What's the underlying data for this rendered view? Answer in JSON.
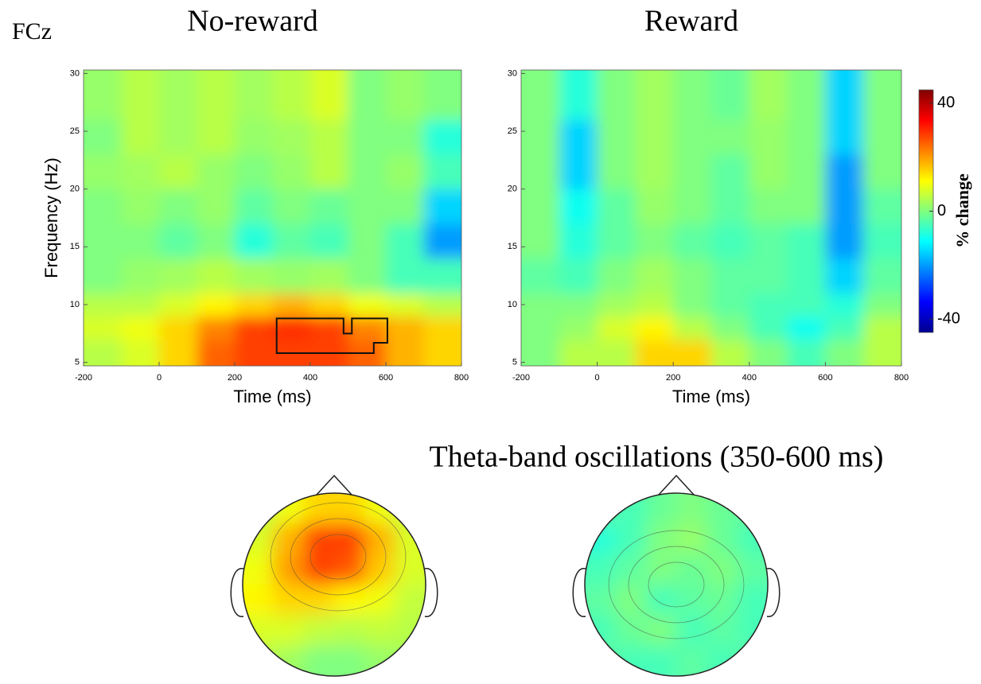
{
  "chart_data": [
    {
      "type": "heatmap",
      "label": "FCz",
      "title": "No-reward",
      "xlabel": "Time (ms)",
      "ylabel": "Frequency (Hz)",
      "xlim": [
        -200,
        800
      ],
      "xticks": [
        -200,
        0,
        200,
        400,
        600,
        800
      ],
      "ylim": [
        4.7,
        30.3
      ],
      "yticks": [
        5,
        10,
        15,
        20,
        25,
        30
      ],
      "x": [
        -200,
        -100,
        0,
        100,
        200,
        300,
        400,
        500,
        600,
        700,
        800
      ],
      "y": [
        4.7,
        7,
        9,
        11,
        14,
        17,
        20,
        23,
        26,
        30.3
      ],
      "values": [
        [
          5,
          8,
          15,
          25,
          28,
          28,
          28,
          25,
          18,
          15
        ],
        [
          8,
          10,
          15,
          22,
          28,
          30,
          28,
          22,
          18,
          15
        ],
        [
          5,
          5,
          8,
          12,
          15,
          18,
          15,
          10,
          8,
          5
        ],
        [
          0,
          2,
          3,
          5,
          3,
          2,
          3,
          0,
          -5,
          -5
        ],
        [
          0,
          0,
          -3,
          0,
          -8,
          -3,
          -5,
          0,
          -5,
          -20
        ],
        [
          0,
          2,
          0,
          2,
          -3,
          0,
          -2,
          0,
          0,
          -15
        ],
        [
          2,
          3,
          5,
          2,
          0,
          2,
          5,
          0,
          2,
          -5
        ],
        [
          0,
          5,
          3,
          5,
          2,
          3,
          5,
          0,
          0,
          -8
        ],
        [
          2,
          5,
          3,
          5,
          3,
          5,
          8,
          0,
          2,
          0
        ]
      ],
      "cluster": [
        [
          311,
          8.8
        ],
        [
          488,
          8.8
        ],
        [
          488,
          7.5
        ],
        [
          510,
          7.5
        ],
        [
          510,
          8.8
        ],
        [
          604,
          8.8
        ],
        [
          604,
          6.7
        ],
        [
          568,
          6.7
        ],
        [
          568,
          5.8
        ],
        [
          311,
          5.8
        ]
      ]
    },
    {
      "type": "heatmap",
      "title": "Reward",
      "xlabel": "Time (ms)",
      "xlim": [
        -200,
        800
      ],
      "xticks": [
        -200,
        0,
        200,
        400,
        600,
        800
      ],
      "ylim": [
        4.7,
        30.3
      ],
      "yticks": [
        5,
        10,
        15,
        20,
        25,
        30
      ],
      "x": [
        -200,
        -100,
        0,
        100,
        200,
        300,
        400,
        500,
        600,
        700,
        800
      ],
      "y": [
        4.7,
        7,
        9,
        11,
        14,
        17,
        20,
        23,
        26,
        30.3
      ],
      "values": [
        [
          0,
          5,
          5,
          15,
          15,
          5,
          0,
          -5,
          0,
          5
        ],
        [
          0,
          2,
          8,
          12,
          5,
          0,
          -5,
          -10,
          -5,
          5
        ],
        [
          0,
          0,
          3,
          5,
          0,
          -3,
          -5,
          -5,
          -8,
          0
        ],
        [
          -3,
          -5,
          0,
          3,
          0,
          -3,
          -3,
          -5,
          -15,
          -3
        ],
        [
          0,
          -8,
          -3,
          0,
          -3,
          -5,
          -3,
          -5,
          -20,
          -5
        ],
        [
          0,
          -10,
          -3,
          2,
          0,
          -3,
          0,
          0,
          -20,
          -3
        ],
        [
          0,
          -15,
          0,
          3,
          0,
          -3,
          2,
          0,
          -20,
          0
        ],
        [
          0,
          -15,
          0,
          3,
          0,
          0,
          2,
          0,
          -15,
          0
        ],
        [
          0,
          -8,
          0,
          3,
          0,
          -2,
          3,
          0,
          -15,
          0
        ]
      ],
      "colorbar": {
        "label": "% change",
        "lim": [
          -45,
          45
        ],
        "ticks": [
          40,
          0,
          -40
        ]
      }
    }
  ],
  "topomaps": {
    "title": "Theta-band oscillations (350-600 ms)",
    "maps": [
      {
        "grid": [
          [
            5,
            10,
            15,
            15,
            10,
            5
          ],
          [
            8,
            18,
            28,
            28,
            18,
            8
          ],
          [
            10,
            20,
            28,
            26,
            16,
            8
          ],
          [
            12,
            15,
            15,
            12,
            10,
            6
          ],
          [
            8,
            8,
            6,
            5,
            6,
            5
          ],
          [
            5,
            3,
            0,
            0,
            2,
            3
          ]
        ]
      },
      {
        "grid": [
          [
            -3,
            -5,
            -2,
            0,
            -2,
            -3
          ],
          [
            -8,
            -5,
            0,
            2,
            -2,
            -5
          ],
          [
            -5,
            -3,
            0,
            -2,
            0,
            -3
          ],
          [
            -3,
            0,
            -5,
            -3,
            -2,
            -5
          ],
          [
            -5,
            -2,
            0,
            -5,
            -3,
            -5
          ],
          [
            -3,
            -5,
            -5,
            -3,
            -5,
            -3
          ]
        ]
      }
    ]
  }
}
